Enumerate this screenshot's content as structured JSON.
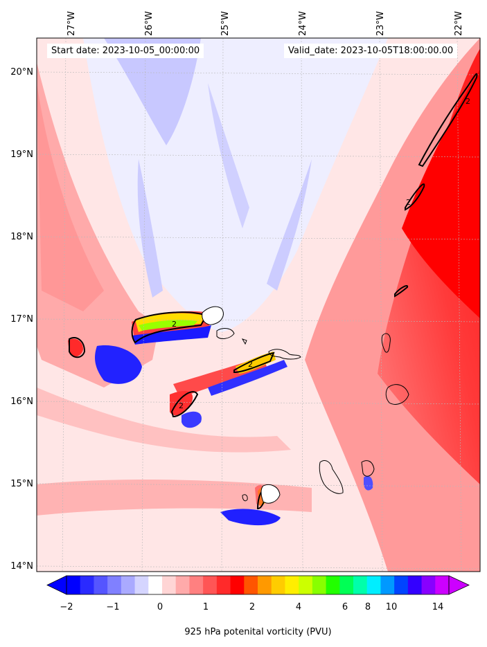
{
  "header": {
    "start_date": "Start date: 2023-10-05_00:00:00",
    "valid_date": "Valid_date: 2023-10-05T18:00:00.00"
  },
  "map": {
    "lon_labels": [
      "27°W",
      "26°W",
      "25°W",
      "24°W",
      "23°W",
      "22°W"
    ],
    "lat_labels": [
      "20°N",
      "19°N",
      "18°N",
      "17°N",
      "16°N",
      "15°N",
      "14°N"
    ],
    "contour_label": "2"
  },
  "colorbar": {
    "ticks": [
      "−2",
      "−1",
      "0",
      "1",
      "2",
      "4",
      "6",
      "8",
      "10",
      "14"
    ],
    "label": "925 hPa potenital vorticity (PVU)",
    "colors": [
      "#0000ff",
      "#2a2aff",
      "#5555ff",
      "#8080ff",
      "#aaaaff",
      "#d5d5ff",
      "#ffffff",
      "#ffd5d5",
      "#ffaaaa",
      "#ff8080",
      "#ff5555",
      "#ff2a2a",
      "#ff0000",
      "#ff5500",
      "#ff9900",
      "#ffcc00",
      "#ffee00",
      "#ccff00",
      "#88ff00",
      "#22ff00",
      "#00ff55",
      "#00ffaa",
      "#00eeff",
      "#0099ff",
      "#0044ff",
      "#3300ff",
      "#8800ff",
      "#cc00ff"
    ]
  }
}
